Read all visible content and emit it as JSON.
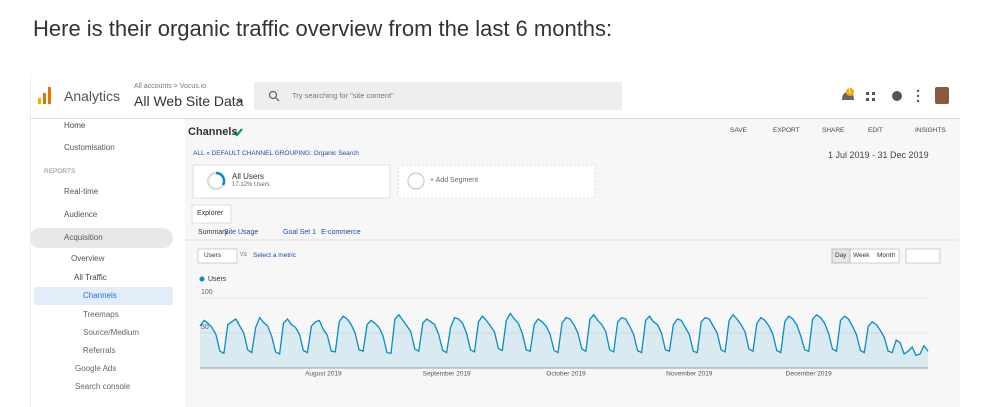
{
  "heading": "Here is their organic traffic overview from the last 6 months:",
  "header": {
    "app": "Analytics",
    "breadcrumb": "All accounts > Vocus.io",
    "property": "All Web Site Data",
    "search_placeholder": "Try searching for \"site content\"",
    "notifications": 1
  },
  "sidebar": {
    "items": [
      "Home",
      "Customisation",
      "REPORTS",
      "Real-time",
      "Audience",
      "Acquisition",
      "Overview",
      "All Traffic",
      "Channels",
      "Treemaps",
      "Source/Medium",
      "Referrals",
      "Google Ads",
      "Search console"
    ]
  },
  "report": {
    "title": "Channels",
    "actions": [
      "SAVE",
      "EXPORT",
      "SHARE",
      "EDIT",
      "INSIGHTS"
    ],
    "breadcrumb": "ALL » DEFAULT CHANNEL GROUPING: Organic Search",
    "date_range": "1 Jul 2019 - 31 Dec 2019",
    "segment": {
      "name": "All Users",
      "detail": "17.12% Users"
    },
    "add_segment": "+ Add Segment",
    "tab": "Explorer",
    "subtabs": [
      "Summary",
      "Site Usage",
      "Goal Set 1",
      "E-commerce"
    ],
    "metric": "Users",
    "vs": "VS",
    "select_metric": "Select a metric",
    "periods": [
      "Day",
      "Week",
      "Month"
    ]
  },
  "chart_data": {
    "type": "line",
    "ylim": [
      0,
      100
    ],
    "yticks": [
      50,
      100
    ],
    "grid": true,
    "categories": [
      null,
      null,
      null,
      null,
      null,
      null,
      null,
      null,
      null,
      null,
      null,
      null,
      null,
      null,
      null,
      null,
      null,
      null,
      null,
      null,
      null,
      null,
      null,
      null,
      null,
      null,
      null,
      null,
      null,
      null,
      null,
      "August 2019",
      null,
      null,
      null,
      null,
      null,
      null,
      null,
      null,
      null,
      null,
      null,
      null,
      null,
      null,
      null,
      null,
      null,
      null,
      null,
      null,
      null,
      null,
      null,
      null,
      null,
      null,
      null,
      null,
      null,
      null,
      "September 2019",
      null,
      null,
      null,
      null,
      null,
      null,
      null,
      null,
      null,
      null,
      null,
      null,
      null,
      null,
      null,
      null,
      null,
      null,
      null,
      null,
      null,
      null,
      null,
      null,
      null,
      null,
      null,
      null,
      null,
      "October 2019",
      null,
      null,
      null,
      null,
      null,
      null,
      null,
      null,
      null,
      null,
      null,
      null,
      null,
      null,
      null,
      null,
      null,
      null,
      null,
      null,
      null,
      null,
      null,
      null,
      null,
      null,
      null,
      null,
      null,
      null,
      "November 2019",
      null,
      null,
      null,
      null,
      null,
      null,
      null,
      null,
      null,
      null,
      null,
      null,
      null,
      null,
      null,
      null,
      null,
      null,
      null,
      null,
      null,
      null,
      null,
      null,
      null,
      null,
      null,
      null,
      null,
      "December 2019",
      null,
      null,
      null,
      null,
      null,
      null,
      null,
      null,
      null,
      null,
      null,
      null,
      null,
      null,
      null,
      null,
      null,
      null,
      null,
      null,
      null,
      null,
      null,
      null,
      null,
      null,
      null,
      null,
      null,
      null
    ],
    "series": [
      {
        "name": "Users",
        "color": "#058dc7",
        "values": [
          60,
          68,
          64,
          58,
          48,
          24,
          21,
          62,
          66,
          70,
          60,
          50,
          26,
          22,
          58,
          72,
          65,
          60,
          46,
          23,
          20,
          64,
          70,
          62,
          58,
          48,
          25,
          22,
          60,
          66,
          68,
          55,
          47,
          24,
          23,
          66,
          74,
          70,
          62,
          50,
          26,
          24,
          62,
          68,
          64,
          58,
          46,
          22,
          21,
          70,
          76,
          68,
          60,
          52,
          27,
          24,
          64,
          70,
          66,
          62,
          48,
          25,
          22,
          58,
          72,
          70,
          64,
          50,
          26,
          23,
          66,
          74,
          68,
          60,
          52,
          28,
          25,
          68,
          78,
          70,
          64,
          50,
          26,
          24,
          62,
          70,
          66,
          60,
          48,
          25,
          22,
          64,
          72,
          70,
          62,
          50,
          27,
          24,
          70,
          76,
          68,
          62,
          52,
          26,
          23,
          66,
          72,
          70,
          60,
          48,
          25,
          22,
          68,
          74,
          66,
          62,
          50,
          26,
          24,
          62,
          70,
          68,
          58,
          48,
          24,
          22,
          66,
          72,
          70,
          60,
          50,
          26,
          23,
          68,
          76,
          70,
          62,
          52,
          27,
          24,
          64,
          72,
          68,
          60,
          48,
          25,
          22,
          66,
          74,
          70,
          62,
          46,
          26,
          24,
          70,
          76,
          72,
          64,
          50,
          27,
          24,
          68,
          74,
          70,
          60,
          48,
          25,
          22,
          60,
          66,
          62,
          54,
          44,
          24,
          22,
          40,
          36,
          20,
          24,
          30,
          18,
          20,
          32,
          24
        ]
      }
    ]
  }
}
